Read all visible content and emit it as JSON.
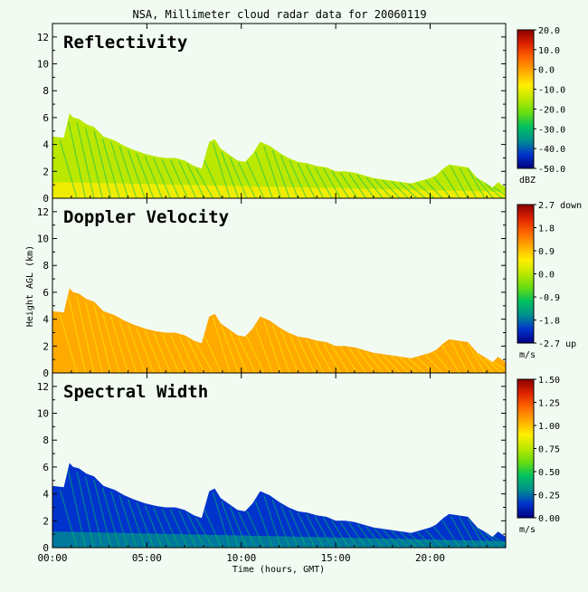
{
  "figure_title": "NSA, Millimeter cloud radar data for 20060119",
  "shared_ylabel": "Height AGL (km)",
  "shared_xlabel": "Time (hours, GMT)",
  "colors": {
    "background": "#f1fbf1",
    "reflectivity_scale": [
      "#000080",
      "#0033cc",
      "#008f8f",
      "#00c060",
      "#66dd11",
      "#bbe800",
      "#ffee00",
      "#ffaa00",
      "#ff6600",
      "#dd2200",
      "#8b0000"
    ],
    "velocity_scale": [
      "#000080",
      "#0033cc",
      "#008f8f",
      "#00c060",
      "#66dd11",
      "#bbe800",
      "#ffee00",
      "#ffaa00",
      "#ff6600",
      "#dd2200",
      "#8b0000"
    ],
    "width_scale": [
      "#000080",
      "#0033cc",
      "#008f8f",
      "#00c060",
      "#66dd11",
      "#bbe800",
      "#ffee00",
      "#ffaa00",
      "#ff6600",
      "#dd2200",
      "#8b0000"
    ]
  },
  "chart_data": [
    {
      "type": "heatmap",
      "title": "Reflectivity",
      "xlabel": "",
      "ylabel": "Height AGL (km)",
      "xlim": [
        0,
        24
      ],
      "ylim": [
        0,
        13
      ],
      "x_ticks": [
        "00:00",
        "05:00",
        "10:00",
        "15:00",
        "20:00"
      ],
      "y_ticks": [
        "0",
        "2",
        "4",
        "6",
        "8",
        "10",
        "12"
      ],
      "colorbar_ticks": [
        "20.0",
        "10.0",
        "0.0",
        "-10.0",
        "-20.0",
        "-30.0",
        "-40.0",
        "-50.0"
      ],
      "colorbar_unit": "dBZ",
      "colorbar_range": [
        -50,
        20
      ],
      "fill_color_index": 5,
      "base_color_index": 6,
      "speckle_color_index": 3
    },
    {
      "type": "heatmap",
      "title": "Doppler Velocity",
      "xlabel": "",
      "ylabel": "Height AGL (km)",
      "xlim": [
        0,
        24
      ],
      "ylim": [
        0,
        13
      ],
      "x_ticks": [
        "00:00",
        "05:00",
        "10:00",
        "15:00",
        "20:00"
      ],
      "y_ticks": [
        "0",
        "2",
        "4",
        "6",
        "8",
        "10",
        "12"
      ],
      "colorbar_ticks": [
        "2.7 down",
        "1.8",
        "0.9",
        "0.0",
        "-0.9",
        "-1.8",
        "-2.7 up"
      ],
      "colorbar_unit": "m/s",
      "colorbar_range": [
        -2.7,
        2.7
      ],
      "fill_color_index": 7,
      "base_color_index": 7,
      "speckle_color_index": 6
    },
    {
      "type": "heatmap",
      "title": "Spectral Width",
      "xlabel": "Time (hours, GMT)",
      "ylabel": "Height AGL (km)",
      "xlim": [
        0,
        24
      ],
      "ylim": [
        0,
        13
      ],
      "x_ticks": [
        "00:00",
        "05:00",
        "10:00",
        "15:00",
        "20:00"
      ],
      "y_ticks": [
        "0",
        "2",
        "4",
        "6",
        "8",
        "10",
        "12"
      ],
      "colorbar_ticks": [
        "1.50",
        "1.25",
        "1.00",
        "0.75",
        "0.50",
        "0.25",
        "0.00"
      ],
      "colorbar_unit": "m/s",
      "colorbar_range": [
        0,
        1.5
      ],
      "fill_color_index": 1,
      "base_color_index": 2,
      "speckle_color_index": 3
    }
  ],
  "cloud_top_profile": {
    "hours": [
      0,
      0.6,
      0.9,
      1.1,
      1.4,
      1.8,
      2.2,
      2.7,
      3.3,
      3.8,
      4.3,
      4.9,
      5.5,
      6.0,
      6.5,
      7.0,
      7.5,
      7.9,
      8.3,
      8.6,
      8.9,
      9.3,
      9.8,
      10.2,
      10.6,
      11.0,
      11.5,
      12.0,
      12.5,
      13.0,
      13.5,
      14.0,
      14.5,
      15.0,
      15.5,
      16.0,
      16.5,
      17.0,
      17.5,
      18.0,
      18.5,
      19.0,
      19.5,
      20.0,
      20.3,
      20.7,
      21.0,
      21.5,
      22.0,
      22.5,
      23.0,
      23.3,
      23.6,
      24.0
    ],
    "top_km": [
      4.6,
      4.5,
      6.3,
      6.0,
      5.9,
      5.5,
      5.3,
      4.6,
      4.3,
      3.9,
      3.6,
      3.3,
      3.1,
      3.0,
      3.0,
      2.8,
      2.4,
      2.2,
      4.2,
      4.4,
      3.7,
      3.3,
      2.8,
      2.7,
      3.3,
      4.2,
      3.9,
      3.4,
      3.0,
      2.7,
      2.6,
      2.4,
      2.3,
      2.0,
      2.0,
      1.9,
      1.7,
      1.5,
      1.4,
      1.3,
      1.2,
      1.1,
      1.3,
      1.5,
      1.7,
      2.2,
      2.5,
      2.4,
      2.3,
      1.5,
      1.1,
      0.8,
      1.2,
      0.8
    ]
  }
}
